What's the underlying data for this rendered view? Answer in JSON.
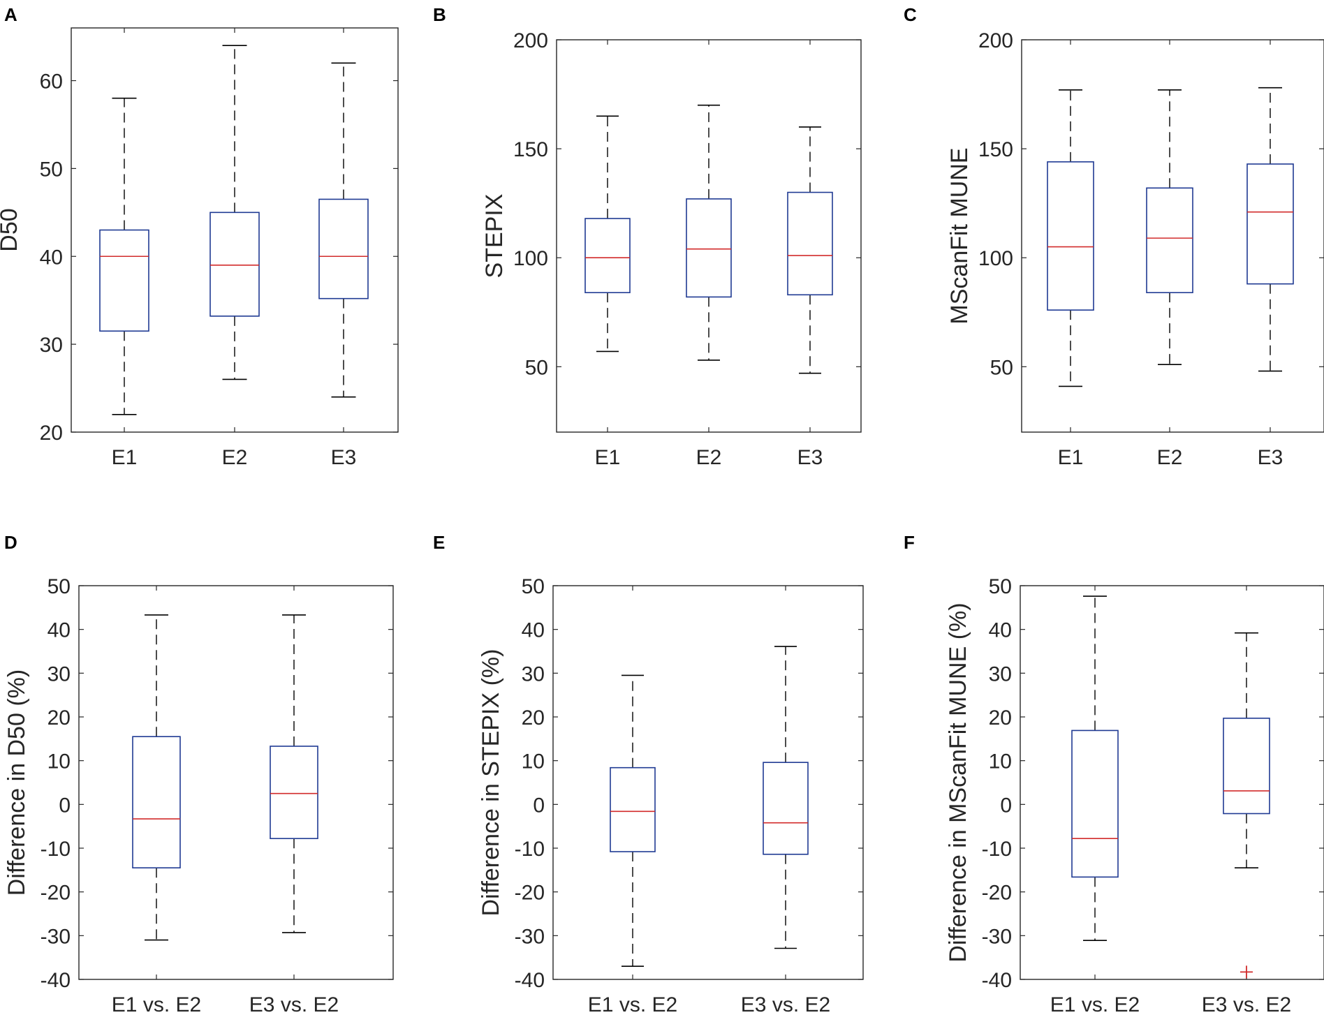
{
  "colors": {
    "box": "#1f3a93",
    "median": "#d22b2b",
    "whisker": "#000000",
    "axis": "#262626",
    "outlier": "#d22b2b"
  },
  "chart_data": [
    {
      "panel": "A",
      "type": "box",
      "categories": [
        "E1",
        "E2",
        "E3"
      ],
      "ylabel": "D50",
      "ylim": [
        20,
        66
      ],
      "yticks": [
        20,
        30,
        40,
        50,
        60
      ],
      "ytick_labels": [
        "20",
        "30",
        "40",
        "50",
        "60"
      ],
      "boxes": [
        {
          "min": 22,
          "q1": 31.5,
          "median": 40,
          "q3": 43,
          "max": 58,
          "outliers": []
        },
        {
          "min": 26,
          "q1": 33.2,
          "median": 39,
          "q3": 45,
          "max": 64,
          "outliers": []
        },
        {
          "min": 24,
          "q1": 35.2,
          "median": 40,
          "q3": 46.5,
          "max": 62,
          "outliers": []
        }
      ]
    },
    {
      "panel": "B",
      "type": "box",
      "categories": [
        "E1",
        "E2",
        "E3"
      ],
      "ylabel": "STEPIX",
      "ylim": [
        20,
        200
      ],
      "yticks": [
        50,
        100,
        150,
        200
      ],
      "ytick_labels": [
        "50",
        "100",
        "150",
        "200"
      ],
      "boxes": [
        {
          "min": 57,
          "q1": 84,
          "median": 100,
          "q3": 118,
          "max": 165,
          "outliers": []
        },
        {
          "min": 53,
          "q1": 82,
          "median": 104,
          "q3": 127,
          "max": 170,
          "outliers": []
        },
        {
          "min": 47,
          "q1": 83,
          "median": 101,
          "q3": 130,
          "max": 160,
          "outliers": []
        }
      ]
    },
    {
      "panel": "C",
      "type": "box",
      "categories": [
        "E1",
        "E2",
        "E3"
      ],
      "ylabel": "MScanFit MUNE",
      "ylim": [
        20,
        200
      ],
      "yticks": [
        50,
        100,
        150,
        200
      ],
      "ytick_labels": [
        "50",
        "100",
        "150",
        "200"
      ],
      "boxes": [
        {
          "min": 41,
          "q1": 76,
          "median": 105,
          "q3": 144,
          "max": 177,
          "outliers": []
        },
        {
          "min": 51,
          "q1": 84,
          "median": 109,
          "q3": 132,
          "max": 177,
          "outliers": []
        },
        {
          "min": 48,
          "q1": 88,
          "median": 121,
          "q3": 143,
          "max": 178,
          "outliers": []
        }
      ]
    },
    {
      "panel": "D",
      "type": "box",
      "categories": [
        "E1 vs. E2",
        "E3 vs. E2"
      ],
      "ylabel": "Difference in D50 (%)",
      "ylim": [
        -40,
        50
      ],
      "yticks": [
        -40,
        -30,
        -20,
        -10,
        0,
        10,
        20,
        30,
        40,
        50
      ],
      "ytick_labels": [
        "-40",
        "-30",
        "-20",
        "-10",
        "0",
        "10",
        "20",
        "30",
        "40",
        "50"
      ],
      "boxes": [
        {
          "min": -31,
          "q1": -14.5,
          "median": -3.3,
          "q3": 15.5,
          "max": 43.3,
          "outliers": []
        },
        {
          "min": -29.3,
          "q1": -7.8,
          "median": 2.5,
          "q3": 13.3,
          "max": 43.3,
          "outliers": []
        }
      ]
    },
    {
      "panel": "E",
      "type": "box",
      "categories": [
        "E1 vs. E2",
        "E3 vs. E2"
      ],
      "ylabel": "Difference in STEPIX (%)",
      "ylim": [
        -40,
        50
      ],
      "yticks": [
        -40,
        -30,
        -20,
        -10,
        0,
        10,
        20,
        30,
        40,
        50
      ],
      "ytick_labels": [
        "-40",
        "-30",
        "-20",
        "-10",
        "0",
        "10",
        "20",
        "30",
        "40",
        "50"
      ],
      "boxes": [
        {
          "min": -37,
          "q1": -10.8,
          "median": -1.6,
          "q3": 8.4,
          "max": 29.5,
          "outliers": []
        },
        {
          "min": -32.9,
          "q1": -11.4,
          "median": -4.2,
          "q3": 9.6,
          "max": 36.1,
          "outliers": []
        }
      ]
    },
    {
      "panel": "F",
      "type": "box",
      "categories": [
        "E1 vs. E2",
        "E3 vs. E2"
      ],
      "ylabel": "Difference in MScanFit MUNE (%)",
      "ylim": [
        -40,
        50
      ],
      "yticks": [
        -40,
        -30,
        -20,
        -10,
        0,
        10,
        20,
        30,
        40,
        50
      ],
      "ytick_labels": [
        "-40",
        "-30",
        "-20",
        "-10",
        "0",
        "10",
        "20",
        "30",
        "40",
        "50"
      ],
      "boxes": [
        {
          "min": -31.1,
          "q1": -16.6,
          "median": -7.8,
          "q3": 16.9,
          "max": 47.6,
          "outliers": []
        },
        {
          "min": -14.5,
          "q1": -2.1,
          "median": 3.1,
          "q3": 19.7,
          "max": 39.2,
          "outliers": [
            -38.3
          ]
        }
      ]
    }
  ]
}
